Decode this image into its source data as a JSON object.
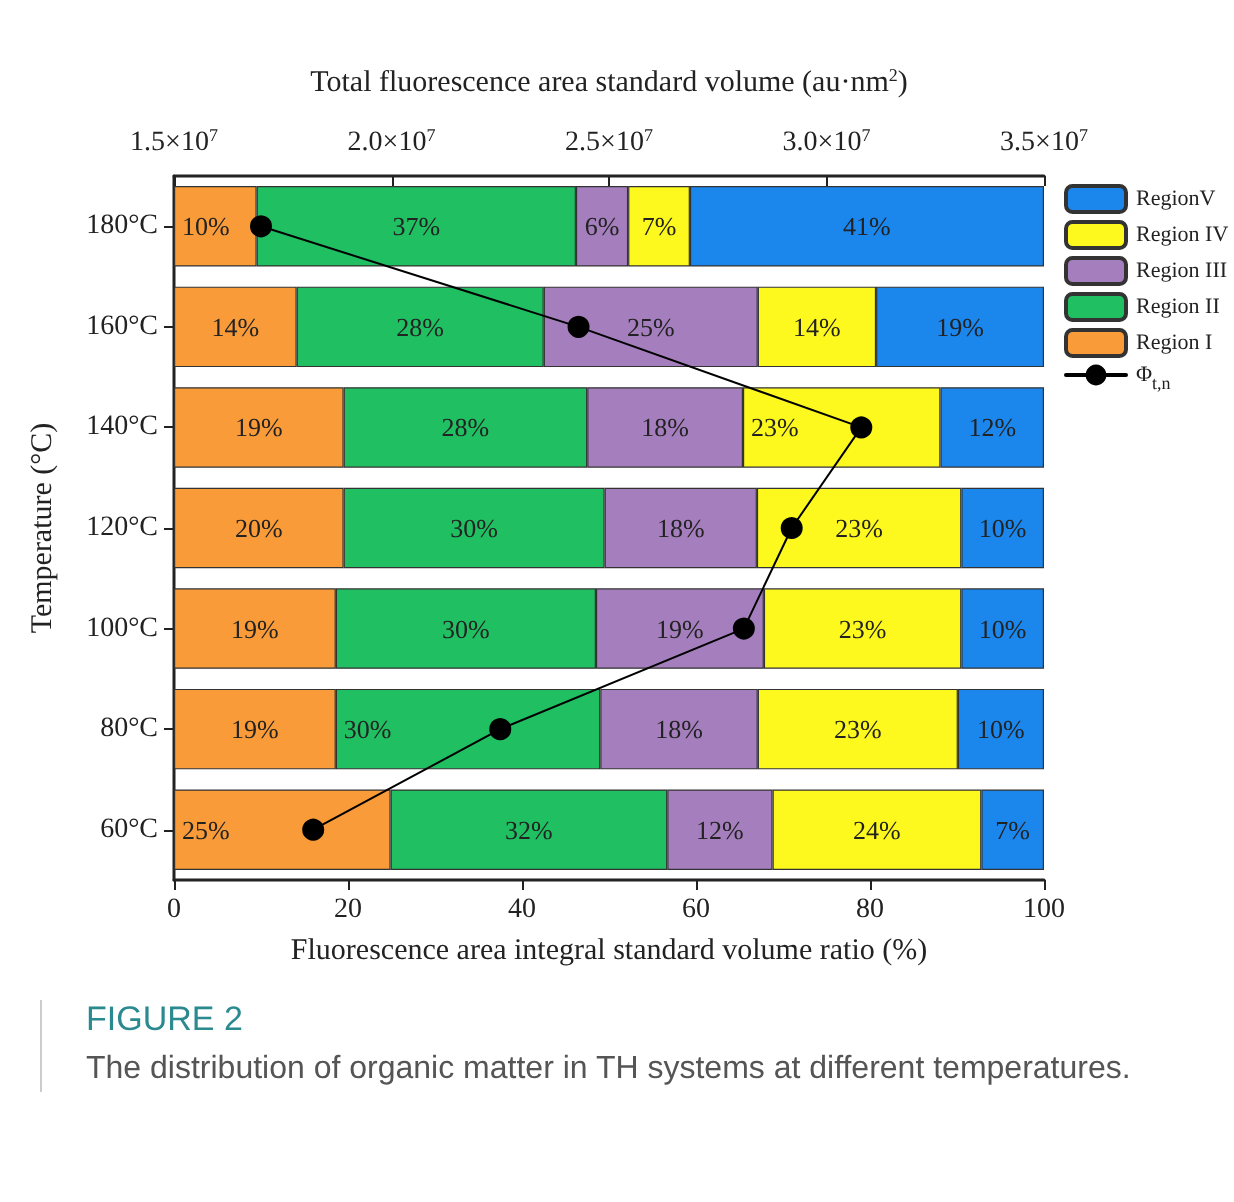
{
  "chart_data": {
    "type": "bar",
    "orientation": "horizontal",
    "stacked": true,
    "title": "FIGURE 2",
    "subtitle": "The distribution of organic matter in TH systems at different temperatures.",
    "xlabel": "Fluorescence area integral standard volume ratio (%)",
    "x2label": "Total fluorescence area standard volume (au·nm$^{2}$)",
    "ylabel": "Temperature (°C)",
    "categories": [
      "180°C",
      "160°C",
      "140°C",
      "120°C",
      "100°C",
      "80°C",
      "60°C"
    ],
    "xlim": [
      0,
      100
    ],
    "xticks": [
      0,
      20,
      40,
      60,
      80,
      100
    ],
    "x2lim": [
      15000000,
      35000000
    ],
    "x2ticks": [
      {
        "value": 15000000,
        "label": "1.5×10$^{7}$"
      },
      {
        "value": 20000000,
        "label": "2.0×10$^{7}$"
      },
      {
        "value": 25000000,
        "label": "2.5×10$^{7}$"
      },
      {
        "value": 30000000,
        "label": "3.0×10$^{7}$"
      },
      {
        "value": 35000000,
        "label": "3.5×10$^{7}$"
      }
    ],
    "grid": false,
    "legend": "top right",
    "series": [
      {
        "name": "Region I",
        "color": "#f99b38",
        "values": [
          9.5,
          14.1,
          19.5,
          19.5,
          18.6,
          18.6,
          24.9
        ],
        "value_labels": [
          "10%",
          "14%",
          "19%",
          "20%",
          "19%",
          "19%",
          "25%"
        ]
      },
      {
        "name": "Region II",
        "color": "#1fbf62",
        "values": [
          36.7,
          28.4,
          28.0,
          30.0,
          29.9,
          30.4,
          31.8
        ],
        "value_labels": [
          "37%",
          "28%",
          "28%",
          "30%",
          "30%",
          "30%",
          "32%"
        ]
      },
      {
        "name": "Region III",
        "color": "#a57fbd",
        "values": [
          6.0,
          24.6,
          17.9,
          17.5,
          19.3,
          18.1,
          12.1
        ],
        "value_labels": [
          "6%",
          "25%",
          "18%",
          "18%",
          "19%",
          "18%",
          "12%"
        ]
      },
      {
        "name": "Region IV",
        "color": "#fdf81e",
        "values": [
          7.1,
          13.6,
          22.7,
          23.5,
          22.7,
          23.0,
          24.0
        ],
        "value_labels": [
          "7%",
          "14%",
          "23%",
          "23%",
          "23%",
          "23%",
          "24%"
        ]
      },
      {
        "name": "RegionV",
        "color": "#1b86ec",
        "values": [
          40.7,
          19.3,
          11.9,
          9.5,
          9.5,
          9.9,
          7.2
        ],
        "value_labels": [
          "41%",
          "19%",
          "12%",
          "10%",
          "10%",
          "10%",
          "7%"
        ]
      },
      {
        "name": "Φ$_{t,n}$",
        "type": "line",
        "axis": "x2",
        "color": "#000000",
        "marker": "circle",
        "line_style": "solid",
        "values": [
          17000000,
          24300000,
          30800000,
          29200000,
          28100000,
          22500000,
          18200000
        ]
      }
    ]
  }
}
